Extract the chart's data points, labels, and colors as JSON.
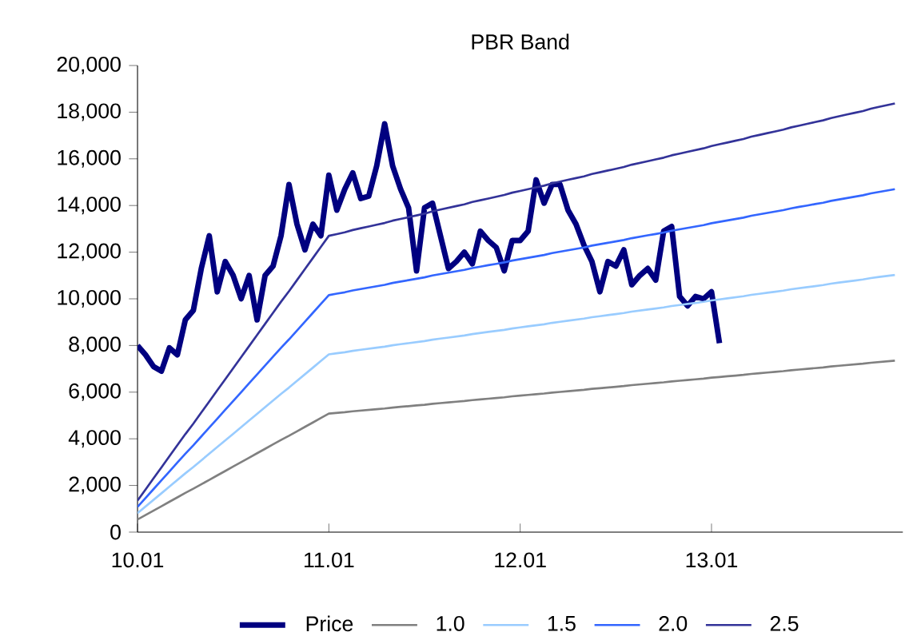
{
  "chart_data": {
    "type": "line",
    "title": "PBR Band",
    "categories": [
      "10.01",
      null,
      null,
      null,
      null,
      null,
      null,
      null,
      null,
      null,
      null,
      null,
      null,
      null,
      null,
      null,
      null,
      null,
      null,
      null,
      null,
      null,
      null,
      null,
      "11.01",
      null,
      null,
      null,
      null,
      null,
      null,
      null,
      null,
      null,
      null,
      null,
      null,
      null,
      null,
      null,
      null,
      null,
      null,
      null,
      null,
      null,
      null,
      null,
      "12.01",
      null,
      null,
      null,
      null,
      null,
      null,
      null,
      null,
      null,
      null,
      null,
      null,
      null,
      null,
      null,
      null,
      null,
      null,
      null,
      null,
      null,
      null,
      null,
      "13.01",
      null,
      null,
      null,
      null,
      null,
      null,
      null,
      null,
      null,
      null,
      null,
      null,
      null,
      null,
      null,
      null,
      null,
      null,
      null,
      null,
      null,
      null,
      null
    ],
    "ylim": [
      0,
      20000
    ],
    "yticks": [
      {
        "value": 0,
        "label": "0"
      },
      {
        "value": 2000,
        "label": "2,000"
      },
      {
        "value": 4000,
        "label": "4,000"
      },
      {
        "value": 6000,
        "label": "6,000"
      },
      {
        "value": 8000,
        "label": "8,000"
      },
      {
        "value": 10000,
        "label": "10,000"
      },
      {
        "value": 12000,
        "label": "12,000"
      },
      {
        "value": 14000,
        "label": "14,000"
      },
      {
        "value": 16000,
        "label": "16,000"
      },
      {
        "value": 18000,
        "label": "18,000"
      },
      {
        "value": 20000,
        "label": "20,000"
      }
    ],
    "grid": false,
    "legend": "bottom",
    "marker": "none",
    "line_style": "solid",
    "series": [
      {
        "name": "Price",
        "color": "#000080",
        "values": [
          8000,
          7600,
          7100,
          6900,
          7900,
          7600,
          9100,
          9500,
          11300,
          12700,
          10300,
          11600,
          11000,
          10000,
          11000,
          9100,
          11000,
          11400,
          12700,
          14900,
          13200,
          12100,
          13200,
          12700,
          15300,
          13800,
          14700,
          15400,
          14300,
          14400,
          15700,
          17500,
          15700,
          14700,
          13900,
          11200,
          13900,
          14100,
          12700,
          11300,
          11600,
          12000,
          11500,
          12900,
          12500,
          12200,
          11200,
          12500,
          12500,
          12900,
          15100,
          14100,
          14900,
          14900,
          13800,
          13200,
          12300,
          11600,
          10300,
          11600,
          11400,
          12100,
          10600,
          11000,
          11300,
          10800,
          12900,
          13100,
          10100,
          9700,
          10100,
          10000,
          10300,
          8100,
          null,
          null,
          null,
          null,
          null,
          null,
          null,
          null,
          null,
          null,
          null,
          null,
          null,
          null,
          null,
          null,
          null,
          null,
          null,
          null,
          null,
          null
        ]
      },
      {
        "name": "1.0",
        "color": "#808080",
        "values": [
          540,
          730,
          920,
          1110,
          1300,
          1490,
          1680,
          1860,
          2050,
          2240,
          2430,
          2620,
          2810,
          3000,
          3190,
          3380,
          3570,
          3760,
          3950,
          4130,
          4320,
          4510,
          4700,
          4890,
          5080,
          5110,
          5140,
          5180,
          5210,
          5240,
          5270,
          5300,
          5340,
          5370,
          5400,
          5430,
          5460,
          5500,
          5530,
          5560,
          5590,
          5620,
          5660,
          5690,
          5720,
          5750,
          5780,
          5820,
          5850,
          5880,
          5910,
          5940,
          5980,
          6010,
          6040,
          6070,
          6100,
          6140,
          6170,
          6200,
          6230,
          6260,
          6300,
          6330,
          6360,
          6390,
          6420,
          6460,
          6490,
          6520,
          6550,
          6580,
          6620,
          6650,
          6680,
          6710,
          6740,
          6780,
          6810,
          6840,
          6870,
          6900,
          6940,
          6970,
          7000,
          7030,
          7060,
          7100,
          7130,
          7160,
          7190,
          7220,
          7260,
          7290,
          7320,
          7350
        ]
      },
      {
        "name": "1.5",
        "color": "#99ccff",
        "values": [
          810,
          1095,
          1380,
          1665,
          1950,
          2235,
          2520,
          2790,
          3075,
          3360,
          3645,
          3930,
          4215,
          4500,
          4785,
          5070,
          5355,
          5640,
          5925,
          6195,
          6480,
          6765,
          7050,
          7335,
          7620,
          7665,
          7710,
          7770,
          7815,
          7860,
          7905,
          7950,
          8010,
          8055,
          8100,
          8145,
          8190,
          8250,
          8295,
          8340,
          8385,
          8430,
          8490,
          8535,
          8580,
          8625,
          8670,
          8730,
          8775,
          8820,
          8865,
          8910,
          8970,
          9015,
          9060,
          9105,
          9150,
          9210,
          9255,
          9300,
          9345,
          9390,
          9450,
          9495,
          9540,
          9585,
          9630,
          9690,
          9735,
          9780,
          9825,
          9870,
          9930,
          9975,
          10020,
          10065,
          10110,
          10170,
          10215,
          10260,
          10305,
          10350,
          10410,
          10455,
          10500,
          10545,
          10590,
          10650,
          10695,
          10740,
          10785,
          10830,
          10890,
          10935,
          10980,
          11025
        ]
      },
      {
        "name": "2.0",
        "color": "#3366ff",
        "values": [
          1080,
          1460,
          1840,
          2220,
          2600,
          2980,
          3360,
          3720,
          4100,
          4480,
          4860,
          5240,
          5620,
          6000,
          6380,
          6760,
          7140,
          7520,
          7900,
          8260,
          8640,
          9020,
          9400,
          9780,
          10160,
          10220,
          10280,
          10360,
          10420,
          10480,
          10540,
          10600,
          10680,
          10740,
          10800,
          10860,
          10920,
          11000,
          11060,
          11120,
          11180,
          11240,
          11320,
          11380,
          11440,
          11500,
          11560,
          11640,
          11700,
          11760,
          11820,
          11880,
          11960,
          12020,
          12080,
          12140,
          12200,
          12280,
          12340,
          12400,
          12460,
          12520,
          12600,
          12660,
          12720,
          12780,
          12840,
          12920,
          12980,
          13040,
          13100,
          13160,
          13240,
          13300,
          13360,
          13420,
          13480,
          13560,
          13620,
          13680,
          13740,
          13800,
          13880,
          13940,
          14000,
          14060,
          14120,
          14200,
          14260,
          14320,
          14380,
          14440,
          14520,
          14580,
          14640,
          14700
        ]
      },
      {
        "name": "2.5",
        "color": "#333399",
        "values": [
          1350,
          1825,
          2300,
          2775,
          3250,
          3725,
          4200,
          4650,
          5125,
          5600,
          6075,
          6550,
          7025,
          7500,
          7975,
          8450,
          8925,
          9400,
          9875,
          10325,
          10800,
          11275,
          11750,
          12225,
          12700,
          12775,
          12850,
          12950,
          13025,
          13100,
          13175,
          13250,
          13350,
          13425,
          13500,
          13575,
          13650,
          13750,
          13825,
          13900,
          13975,
          14050,
          14150,
          14225,
          14300,
          14375,
          14450,
          14550,
          14625,
          14700,
          14775,
          14850,
          14950,
          15025,
          15100,
          15175,
          15250,
          15350,
          15425,
          15500,
          15575,
          15650,
          15750,
          15825,
          15900,
          15975,
          16050,
          16150,
          16225,
          16300,
          16375,
          16450,
          16550,
          16625,
          16700,
          16775,
          16850,
          16950,
          17025,
          17100,
          17175,
          17250,
          17350,
          17425,
          17500,
          17575,
          17650,
          17750,
          17825,
          17900,
          17975,
          18050,
          18150,
          18225,
          18300,
          18375
        ]
      }
    ]
  }
}
